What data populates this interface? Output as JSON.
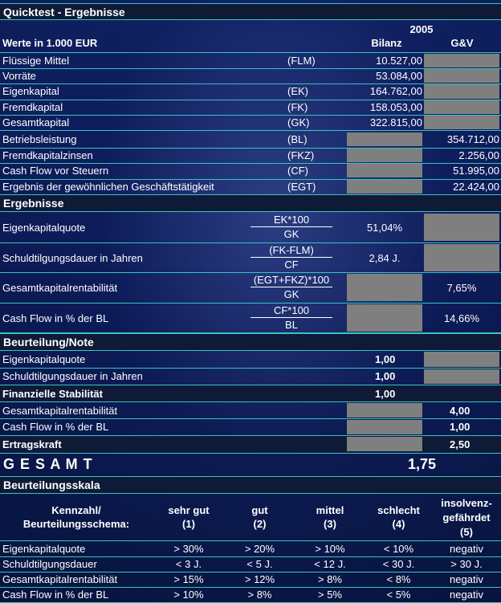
{
  "title": "Quicktest - Ergebnisse",
  "year": "2005",
  "units_label": "Werte in 1.000 EUR",
  "col_bilanz": "Bilanz",
  "col_guv": "G&V",
  "balance_rows": [
    {
      "label": "Flüssige Mittel",
      "abbr": "(FLM)",
      "bilanz": "10.527,00",
      "guv": ""
    },
    {
      "label": "Vorräte",
      "abbr": "",
      "bilanz": "53.084,00",
      "guv": ""
    },
    {
      "label": "Eigenkapital",
      "abbr": "(EK)",
      "bilanz": "164.762,00",
      "guv": ""
    },
    {
      "label": "Fremdkapital",
      "abbr": "(FK)",
      "bilanz": "158.053,00",
      "guv": ""
    },
    {
      "label": "Gesamtkapital",
      "abbr": "(GK)",
      "bilanz": "322.815,00",
      "guv": ""
    }
  ],
  "income_rows": [
    {
      "label": "Betriebsleistung",
      "abbr": "(BL)",
      "guv": "354.712,00"
    },
    {
      "label": "Fremdkapitalzinsen",
      "abbr": "(FKZ)",
      "guv": "2.256,00"
    },
    {
      "label": "Cash Flow vor Steuern",
      "abbr": "(CF)",
      "guv": "51.995,00"
    },
    {
      "label": "Ergebnis der gewöhnlichen Geschäftstätigkeit",
      "abbr": "(EGT)",
      "guv": "22.424,00"
    }
  ],
  "ergebnisse": {
    "title": "Ergebnisse",
    "rows": [
      {
        "label": "Eigenkapitalquote",
        "num": "EK*100",
        "den": "GK",
        "bilanz": "51,04%",
        "guv": ""
      },
      {
        "label": "Schuldtilgungsdauer in Jahren",
        "num": "(FK-FLM)",
        "den": "CF",
        "bilanz": "2,84 J.",
        "guv": ""
      },
      {
        "label": "Gesamtkapitalrentabilität",
        "num": "(EGT+FKZ)*100",
        "den": "GK",
        "bilanz": "",
        "guv": "7,65%"
      },
      {
        "label": "Cash Flow in % der BL",
        "num": "CF*100",
        "den": "BL",
        "bilanz": "",
        "guv": "14,66%"
      }
    ]
  },
  "beurteilung": {
    "title": "Beurteilung/Note",
    "ekq_label": "Eigenkapitalquote",
    "ekq_value": "1,00",
    "sdd_label": "Schuldtilgungsdauer in Jahren",
    "sdd_value": "1,00",
    "fin_label": "Finanzielle Stabilität",
    "fin_value": "1,00",
    "gkr_label": "Gesamtkapitalrentabilität",
    "gkr_value": "4,00",
    "cf_label": "Cash Flow in % der BL",
    "cf_value": "1,00",
    "ek_label": "Ertragskraft",
    "ek_value": "2,50"
  },
  "gesamt": {
    "label": "G E S A M T",
    "value": "1,75"
  },
  "skala": {
    "title": "Beurteilungsskala",
    "head_label_1": "Kennzahl/",
    "head_label_2": "Beurteilungsschema:",
    "columns": [
      {
        "l1": "",
        "l2": "sehr gut",
        "l3": "(1)"
      },
      {
        "l1": "",
        "l2": "gut",
        "l3": "(2)"
      },
      {
        "l1": "",
        "l2": "mittel",
        "l3": "(3)"
      },
      {
        "l1": "",
        "l2": "schlecht",
        "l3": "(4)"
      },
      {
        "l1": "insolvenz-",
        "l2": "gefährdet",
        "l3": "(5)"
      }
    ],
    "rows": [
      {
        "label": "Eigenkapitalquote",
        "vals": [
          "> 30%",
          "> 20%",
          "> 10%",
          "< 10%",
          "negativ"
        ]
      },
      {
        "label": "Schuldtilgungsdauer",
        "vals": [
          "< 3 J.",
          "< 5 J.",
          "< 12 J.",
          "< 30 J.",
          "> 30 J."
        ]
      },
      {
        "label": "Gesamtkapitalrentabilität",
        "vals": [
          "> 15%",
          "> 12%",
          "> 8%",
          "< 8%",
          "negativ"
        ]
      },
      {
        "label": "Cash Flow in % der BL",
        "vals": [
          "> 10%",
          "> 8%",
          "> 5%",
          "< 5%",
          "negativ"
        ]
      }
    ]
  },
  "colors": {
    "accent_line": "#33c6c6",
    "grey_cell": "#7f7f7f",
    "header_bg": "#0f1a36"
  }
}
